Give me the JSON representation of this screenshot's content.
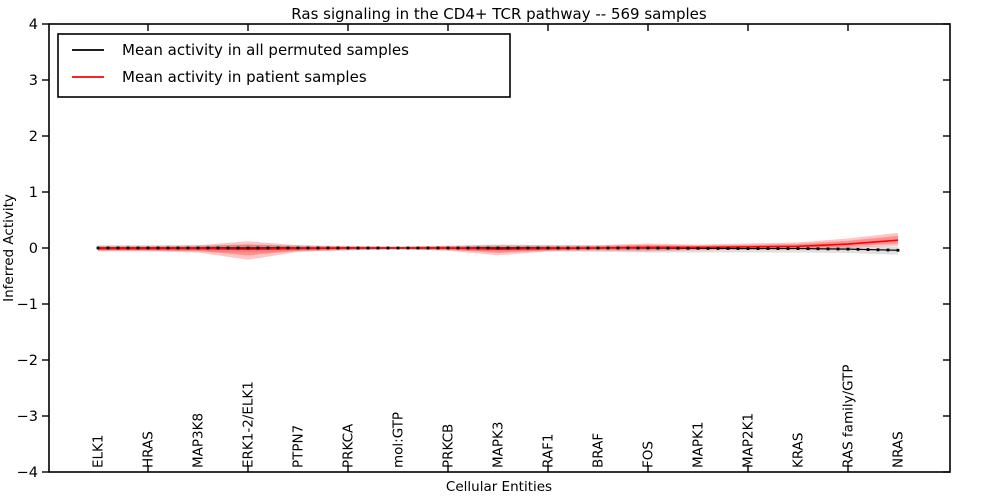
{
  "title": "Ras signaling in the CD4+ TCR pathway -- 569 samples",
  "axes": {
    "xlabel": "Cellular Entities",
    "ylabel": "Inferred Activity",
    "ytick_labels": [
      "4",
      "3",
      "2",
      "1",
      "0",
      "−1",
      "−2",
      "−3",
      "−4"
    ],
    "ytick_values": [
      4,
      3,
      2,
      1,
      0,
      -1,
      -2,
      -3,
      -4
    ],
    "ylim": [
      -4,
      4
    ]
  },
  "legend": {
    "items": [
      {
        "label": "Mean activity in all permuted samples",
        "color": "#000000"
      },
      {
        "label": "Mean activity in patient samples",
        "color": "#ff0000"
      }
    ]
  },
  "colors": {
    "permuted_line": "#000000",
    "patient_line": "#ff0000",
    "patient_band": "#ff0000",
    "permuted_band": "#999999",
    "spine": "#000000"
  },
  "chart_data": {
    "type": "line",
    "title": "Ras signaling in the CD4+ TCR pathway -- 569 samples",
    "xlabel": "Cellular Entities",
    "ylabel": "Inferred Activity",
    "ylim": [
      -4,
      4
    ],
    "grid": false,
    "legend_position": "upper left",
    "categories": [
      "ELK1",
      "HRAS",
      "MAP3K8",
      "ERK1-2/ELK1",
      "PTPN7",
      "PRKCA",
      "mol:GTP",
      "PRKCB",
      "MAPK3",
      "RAF1",
      "BRAF",
      "FOS",
      "MAPK1",
      "MAP2K1",
      "KRAS",
      "RAS family/GTP",
      "NRAS"
    ],
    "series": [
      {
        "name": "Mean activity in all permuted samples",
        "color": "#000000",
        "values": [
          0,
          0,
          0,
          0,
          0,
          0,
          0,
          0,
          0,
          0,
          0,
          0,
          -0.005,
          -0.01,
          -0.01,
          -0.02,
          -0.04
        ]
      },
      {
        "name": "Mean activity in patient samples",
        "color": "#ff0000",
        "values": [
          -0.01,
          -0.01,
          -0.01,
          -0.02,
          -0.01,
          0,
          0,
          0,
          -0.02,
          -0.01,
          0,
          0.01,
          0.01,
          0.02,
          0.03,
          0.07,
          0.14
        ]
      }
    ],
    "bands": [
      {
        "name": "patient samples spread",
        "color": "#ff0000",
        "hi": [
          0.04,
          0.04,
          0.05,
          0.12,
          0.05,
          0.03,
          0.02,
          0.04,
          0.06,
          0.05,
          0.05,
          0.08,
          0.06,
          0.08,
          0.1,
          0.17,
          0.27
        ],
        "lo": [
          -0.06,
          -0.06,
          -0.08,
          -0.21,
          -0.07,
          -0.04,
          -0.02,
          -0.05,
          -0.13,
          -0.06,
          -0.05,
          -0.06,
          -0.04,
          -0.03,
          -0.02,
          0.0,
          0.04
        ]
      },
      {
        "name": "permuted samples spread",
        "color": "#999999",
        "hi": [
          0.05,
          0.05,
          0.05,
          0.06,
          0.05,
          0.04,
          0.03,
          0.04,
          0.05,
          0.05,
          0.05,
          0.05,
          0.04,
          0.04,
          0.04,
          0.03,
          0.03
        ],
        "lo": [
          -0.05,
          -0.05,
          -0.06,
          -0.08,
          -0.06,
          -0.04,
          -0.03,
          -0.04,
          -0.06,
          -0.06,
          -0.07,
          -0.08,
          -0.08,
          -0.08,
          -0.08,
          -0.09,
          -0.12
        ]
      }
    ]
  }
}
